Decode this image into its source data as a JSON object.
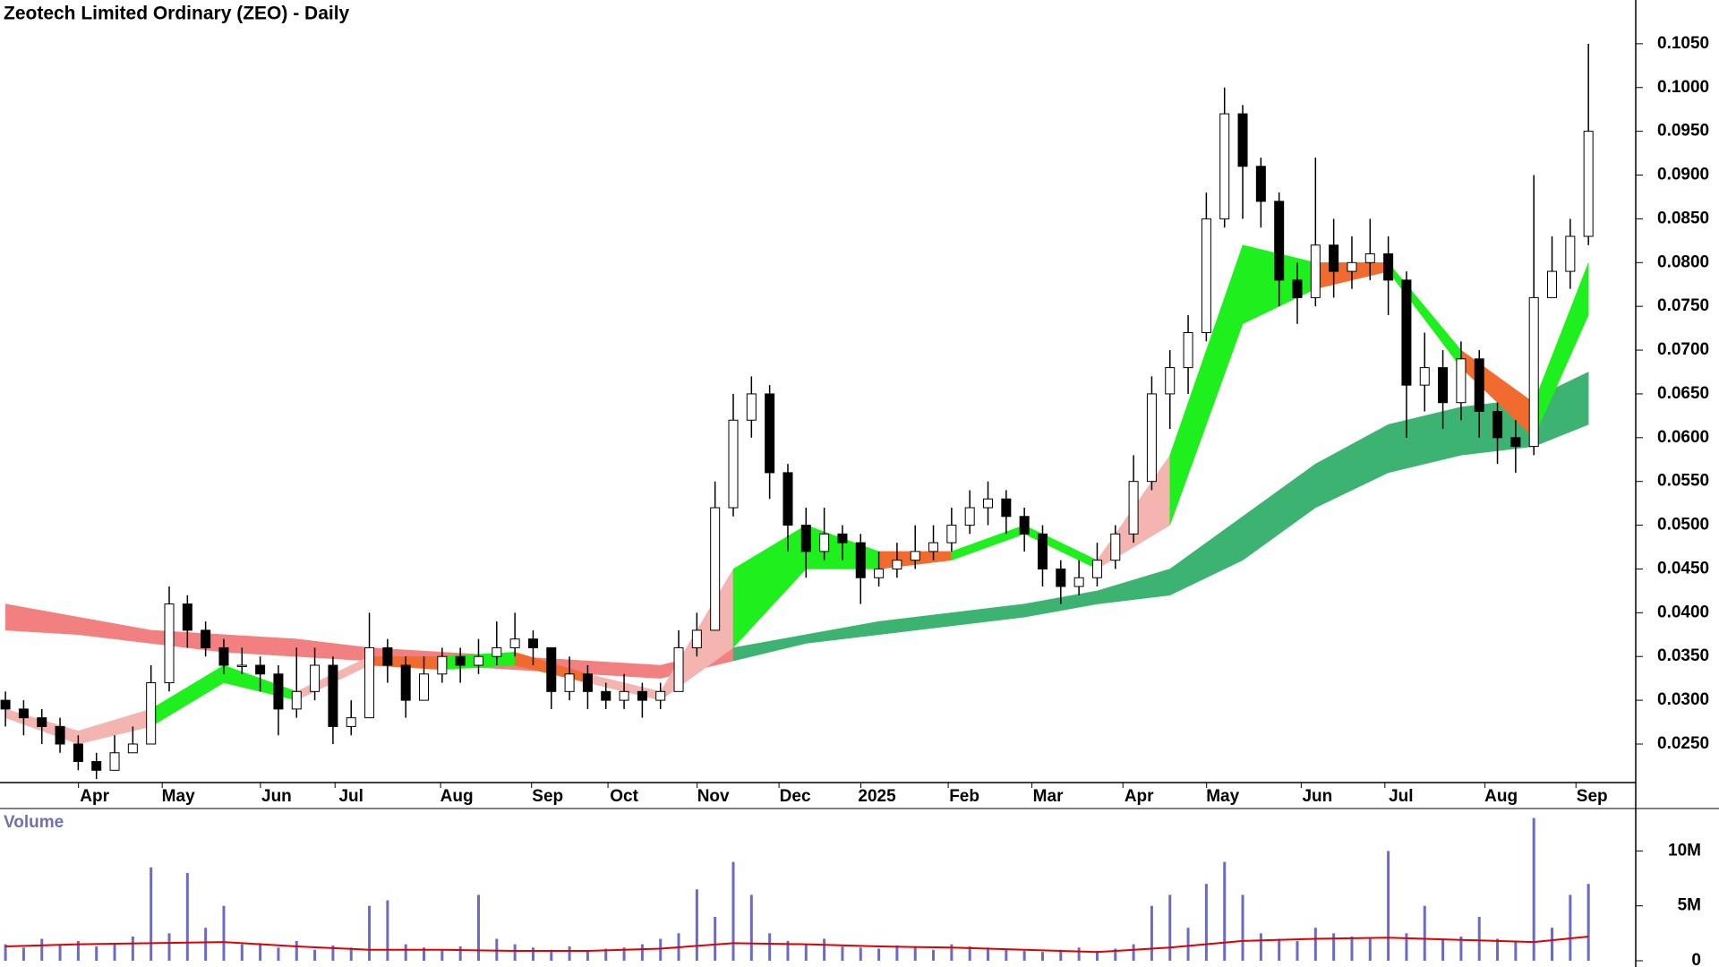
{
  "chart_data": [
    {
      "type": "candlestick",
      "title": "Zeotech Limited Ordinary (ZEO) - Daily",
      "open": [
        0.03,
        0.029,
        0.028,
        0.027,
        0.025,
        0.023,
        0.022,
        0.024,
        0.025,
        0.032,
        0.041,
        0.038,
        0.036,
        0.034,
        0.034,
        0.033,
        0.029,
        0.031,
        0.034,
        0.027,
        0.028,
        0.036,
        0.034,
        0.03,
        0.033,
        0.035,
        0.034,
        0.035,
        0.036,
        0.037,
        0.036,
        0.031,
        0.033,
        0.031,
        0.03,
        0.031,
        0.03,
        0.031,
        0.036,
        0.038,
        0.052,
        0.062,
        0.065,
        0.056,
        0.05,
        0.047,
        0.049,
        0.048,
        0.044,
        0.045,
        0.046,
        0.047,
        0.048,
        0.05,
        0.052,
        0.053,
        0.051,
        0.049,
        0.045,
        0.043,
        0.044,
        0.046,
        0.049,
        0.055,
        0.065,
        0.068,
        0.072,
        0.085,
        0.097,
        0.091,
        0.087,
        0.078,
        0.076,
        0.082,
        0.079,
        0.08,
        0.081,
        0.078,
        0.066,
        0.068,
        0.064,
        0.069,
        0.063,
        0.06,
        0.059,
        0.076,
        0.079,
        0.083
      ],
      "high": [
        0.031,
        0.03,
        0.029,
        0.028,
        0.026,
        0.024,
        0.026,
        0.027,
        0.034,
        0.043,
        0.042,
        0.039,
        0.037,
        0.036,
        0.035,
        0.034,
        0.036,
        0.036,
        0.035,
        0.03,
        0.04,
        0.037,
        0.035,
        0.035,
        0.036,
        0.036,
        0.037,
        0.039,
        0.04,
        0.038,
        0.036,
        0.035,
        0.034,
        0.032,
        0.033,
        0.032,
        0.032,
        0.038,
        0.04,
        0.055,
        0.065,
        0.067,
        0.066,
        0.057,
        0.052,
        0.052,
        0.05,
        0.049,
        0.047,
        0.048,
        0.05,
        0.05,
        0.052,
        0.054,
        0.055,
        0.054,
        0.052,
        0.05,
        0.046,
        0.046,
        0.048,
        0.05,
        0.058,
        0.067,
        0.07,
        0.074,
        0.088,
        0.1,
        0.098,
        0.092,
        0.088,
        0.08,
        0.092,
        0.085,
        0.083,
        0.085,
        0.083,
        0.079,
        0.072,
        0.07,
        0.071,
        0.07,
        0.064,
        0.062,
        0.09,
        0.083,
        0.085,
        0.105
      ],
      "low": [
        0.027,
        0.026,
        0.025,
        0.024,
        0.022,
        0.021,
        0.022,
        0.024,
        0.025,
        0.031,
        0.036,
        0.035,
        0.033,
        0.033,
        0.031,
        0.026,
        0.028,
        0.03,
        0.025,
        0.026,
        0.028,
        0.032,
        0.028,
        0.03,
        0.032,
        0.032,
        0.033,
        0.034,
        0.035,
        0.034,
        0.029,
        0.03,
        0.029,
        0.029,
        0.029,
        0.028,
        0.029,
        0.031,
        0.035,
        0.038,
        0.051,
        0.06,
        0.053,
        0.047,
        0.044,
        0.046,
        0.046,
        0.041,
        0.043,
        0.044,
        0.045,
        0.046,
        0.047,
        0.049,
        0.05,
        0.049,
        0.047,
        0.043,
        0.041,
        0.042,
        0.043,
        0.045,
        0.048,
        0.054,
        0.061,
        0.065,
        0.071,
        0.084,
        0.085,
        0.084,
        0.075,
        0.073,
        0.075,
        0.076,
        0.077,
        0.078,
        0.074,
        0.06,
        0.063,
        0.061,
        0.062,
        0.06,
        0.057,
        0.056,
        0.058,
        0.076,
        0.077,
        0.082
      ],
      "close": [
        0.029,
        0.028,
        0.027,
        0.025,
        0.023,
        0.022,
        0.024,
        0.025,
        0.032,
        0.041,
        0.038,
        0.036,
        0.034,
        0.034,
        0.033,
        0.029,
        0.031,
        0.034,
        0.027,
        0.028,
        0.036,
        0.034,
        0.03,
        0.033,
        0.035,
        0.034,
        0.035,
        0.036,
        0.037,
        0.036,
        0.031,
        0.033,
        0.031,
        0.03,
        0.031,
        0.03,
        0.031,
        0.036,
        0.038,
        0.052,
        0.062,
        0.065,
        0.056,
        0.05,
        0.047,
        0.049,
        0.048,
        0.044,
        0.045,
        0.046,
        0.047,
        0.048,
        0.05,
        0.052,
        0.053,
        0.051,
        0.049,
        0.045,
        0.043,
        0.044,
        0.046,
        0.049,
        0.055,
        0.065,
        0.068,
        0.072,
        0.085,
        0.097,
        0.091,
        0.087,
        0.078,
        0.076,
        0.082,
        0.079,
        0.08,
        0.081,
        0.078,
        0.066,
        0.068,
        0.064,
        0.069,
        0.063,
        0.06,
        0.059,
        0.076,
        0.079,
        0.083,
        0.095
      ],
      "bands": [
        {
          "x": [
            0,
            4,
            8,
            12,
            16,
            20,
            24,
            28,
            32,
            36,
            40,
            44,
            48,
            52,
            56,
            60,
            64,
            68,
            72,
            76,
            80,
            84,
            87
          ],
          "upper": [
            0.041,
            0.0395,
            0.038,
            0.0375,
            0.037,
            0.036,
            0.0355,
            0.035,
            0.0345,
            0.034,
            0.036,
            0.0375,
            0.039,
            0.04,
            0.041,
            0.0425,
            0.045,
            0.051,
            0.057,
            0.0615,
            0.0635,
            0.0645,
            0.0675
          ],
          "lower": [
            0.038,
            0.0375,
            0.0365,
            0.0355,
            0.035,
            0.0345,
            0.034,
            0.0335,
            0.033,
            0.0325,
            0.0345,
            0.0365,
            0.0375,
            0.0385,
            0.0395,
            0.041,
            0.042,
            0.046,
            0.052,
            0.056,
            0.058,
            0.059,
            0.0615
          ],
          "colors": [
            "#f28080",
            "#f28080",
            "#f28080",
            "#f28080",
            "#f28080",
            "#f28080",
            "#f28080",
            "#f28080",
            "#f28080",
            "#f28080",
            "#3cb371",
            "#3cb371",
            "#3cb371",
            "#3cb371",
            "#3cb371",
            "#3cb371",
            "#3cb371",
            "#3cb371",
            "#3cb371",
            "#3cb371",
            "#3cb371",
            "#3cb371"
          ]
        },
        {
          "x": [
            0,
            4,
            8,
            12,
            16,
            20,
            24,
            28,
            32,
            36,
            40,
            44,
            48,
            52,
            56,
            60,
            64,
            68,
            72,
            76,
            80,
            84,
            87
          ],
          "upper": [
            0.029,
            0.0265,
            0.029,
            0.034,
            0.031,
            0.035,
            0.035,
            0.0355,
            0.033,
            0.031,
            0.045,
            0.05,
            0.047,
            0.047,
            0.05,
            0.046,
            0.058,
            0.082,
            0.08,
            0.08,
            0.07,
            0.064,
            0.08
          ],
          "lower": [
            0.028,
            0.025,
            0.027,
            0.032,
            0.03,
            0.034,
            0.0335,
            0.034,
            0.032,
            0.03,
            0.036,
            0.045,
            0.045,
            0.046,
            0.049,
            0.045,
            0.05,
            0.073,
            0.077,
            0.079,
            0.068,
            0.06,
            0.074
          ],
          "colors": [
            "#f4b4b0",
            "#f4b4b0",
            "#1ef01e",
            "#1ef01e",
            "#f4b4b0",
            "#f26b2e",
            "#1ef01e",
            "#f26b2e",
            "#f4b4b0",
            "#f4b4b0",
            "#1ef01e",
            "#1ef01e",
            "#f26b2e",
            "#1ef01e",
            "#1ef01e",
            "#f4b4b0",
            "#1ef01e",
            "#1ef01e",
            "#f26b2e",
            "#1ef01e",
            "#f26b2e",
            "#1ef01e"
          ]
        }
      ],
      "xlim": [
        -0.3,
        89.6
      ],
      "xticks": [
        {
          "value": 4.9,
          "label": "Apr"
        },
        {
          "value": 9.5,
          "label": "May"
        },
        {
          "value": 14.9,
          "label": "Jun"
        },
        {
          "value": 19.0,
          "label": "Jul"
        },
        {
          "value": 24.8,
          "label": "Aug"
        },
        {
          "value": 29.8,
          "label": "Sep"
        },
        {
          "value": 34.0,
          "label": "Oct"
        },
        {
          "value": 38.9,
          "label": "Nov"
        },
        {
          "value": 43.4,
          "label": "Dec"
        },
        {
          "value": 47.9,
          "label": "2025"
        },
        {
          "value": 52.7,
          "label": "Feb"
        },
        {
          "value": 57.3,
          "label": "Mar"
        },
        {
          "value": 62.3,
          "label": "Apr"
        },
        {
          "value": 66.9,
          "label": "May"
        },
        {
          "value": 72.1,
          "label": "Jun"
        },
        {
          "value": 76.7,
          "label": "Jul"
        },
        {
          "value": 82.2,
          "label": "Aug"
        },
        {
          "value": 87.2,
          "label": "Sep"
        }
      ],
      "ylim": [
        0.0206,
        0.11
      ],
      "yticks": [
        {
          "value": 0.025,
          "label": "0.0250"
        },
        {
          "value": 0.03,
          "label": "0.0300"
        },
        {
          "value": 0.035,
          "label": "0.0350"
        },
        {
          "value": 0.04,
          "label": "0.0400"
        },
        {
          "value": 0.045,
          "label": "0.0450"
        },
        {
          "value": 0.05,
          "label": "0.0500"
        },
        {
          "value": 0.055,
          "label": "0.0550"
        },
        {
          "value": 0.06,
          "label": "0.0600"
        },
        {
          "value": 0.065,
          "label": "0.0650"
        },
        {
          "value": 0.07,
          "label": "0.0700"
        },
        {
          "value": 0.075,
          "label": "0.0750"
        },
        {
          "value": 0.08,
          "label": "0.0800"
        },
        {
          "value": 0.085,
          "label": "0.0850"
        },
        {
          "value": 0.09,
          "label": "0.0900"
        },
        {
          "value": 0.095,
          "label": "0.0950"
        },
        {
          "value": 0.1,
          "label": "0.1000"
        },
        {
          "value": 0.105,
          "label": "0.1050"
        }
      ]
    },
    {
      "type": "bar",
      "title": "Volume",
      "color": "#6a6ac8",
      "values": [
        1500000,
        1200000,
        2000000,
        1400000,
        1800000,
        1300000,
        1600000,
        2200000,
        8500000,
        2500000,
        8000000,
        3000000,
        5000000,
        1500000,
        1600000,
        1200000,
        1800000,
        1000000,
        1400000,
        1200000,
        5000000,
        5500000,
        1500000,
        1200000,
        1000000,
        1300000,
        6000000,
        2000000,
        1500000,
        1200000,
        1000000,
        1300000,
        900000,
        1100000,
        1200000,
        1500000,
        2000000,
        2500000,
        6500000,
        4000000,
        9000000,
        6000000,
        2500000,
        1800000,
        1500000,
        2000000,
        1300000,
        1200000,
        1100000,
        1400000,
        1200000,
        1000000,
        1500000,
        1300000,
        1200000,
        1000000,
        900000,
        800000,
        1000000,
        1200000,
        900000,
        1100000,
        1500000,
        5000000,
        6000000,
        3000000,
        7000000,
        9000000,
        6000000,
        2500000,
        2000000,
        1800000,
        3000000,
        2500000,
        2200000,
        2000000,
        10000000,
        2500000,
        5000000,
        2000000,
        2200000,
        4000000,
        2000000,
        1800000,
        13000000,
        3000000,
        6000000,
        7000000
      ],
      "ma": {
        "x": [
          0,
          4,
          8,
          12,
          16,
          20,
          24,
          28,
          32,
          36,
          40,
          44,
          48,
          52,
          56,
          60,
          64,
          68,
          72,
          76,
          80,
          84,
          87
        ],
        "values": [
          1300000,
          1500000,
          1600000,
          1700000,
          1300000,
          1000000,
          1000000,
          900000,
          900000,
          1100000,
          1600000,
          1500000,
          1300000,
          1200000,
          1000000,
          800000,
          1200000,
          1800000,
          2000000,
          2100000,
          1900000,
          1700000,
          2200000
        ],
        "color": "#e00000"
      },
      "xlim": [
        -0.3,
        89.6
      ],
      "ylim": [
        0,
        13700000
      ],
      "yticks": [
        0,
        {
          "value": 5000000,
          "label": "5M"
        },
        {
          "value": 10000000,
          "label": "10M"
        }
      ]
    }
  ]
}
